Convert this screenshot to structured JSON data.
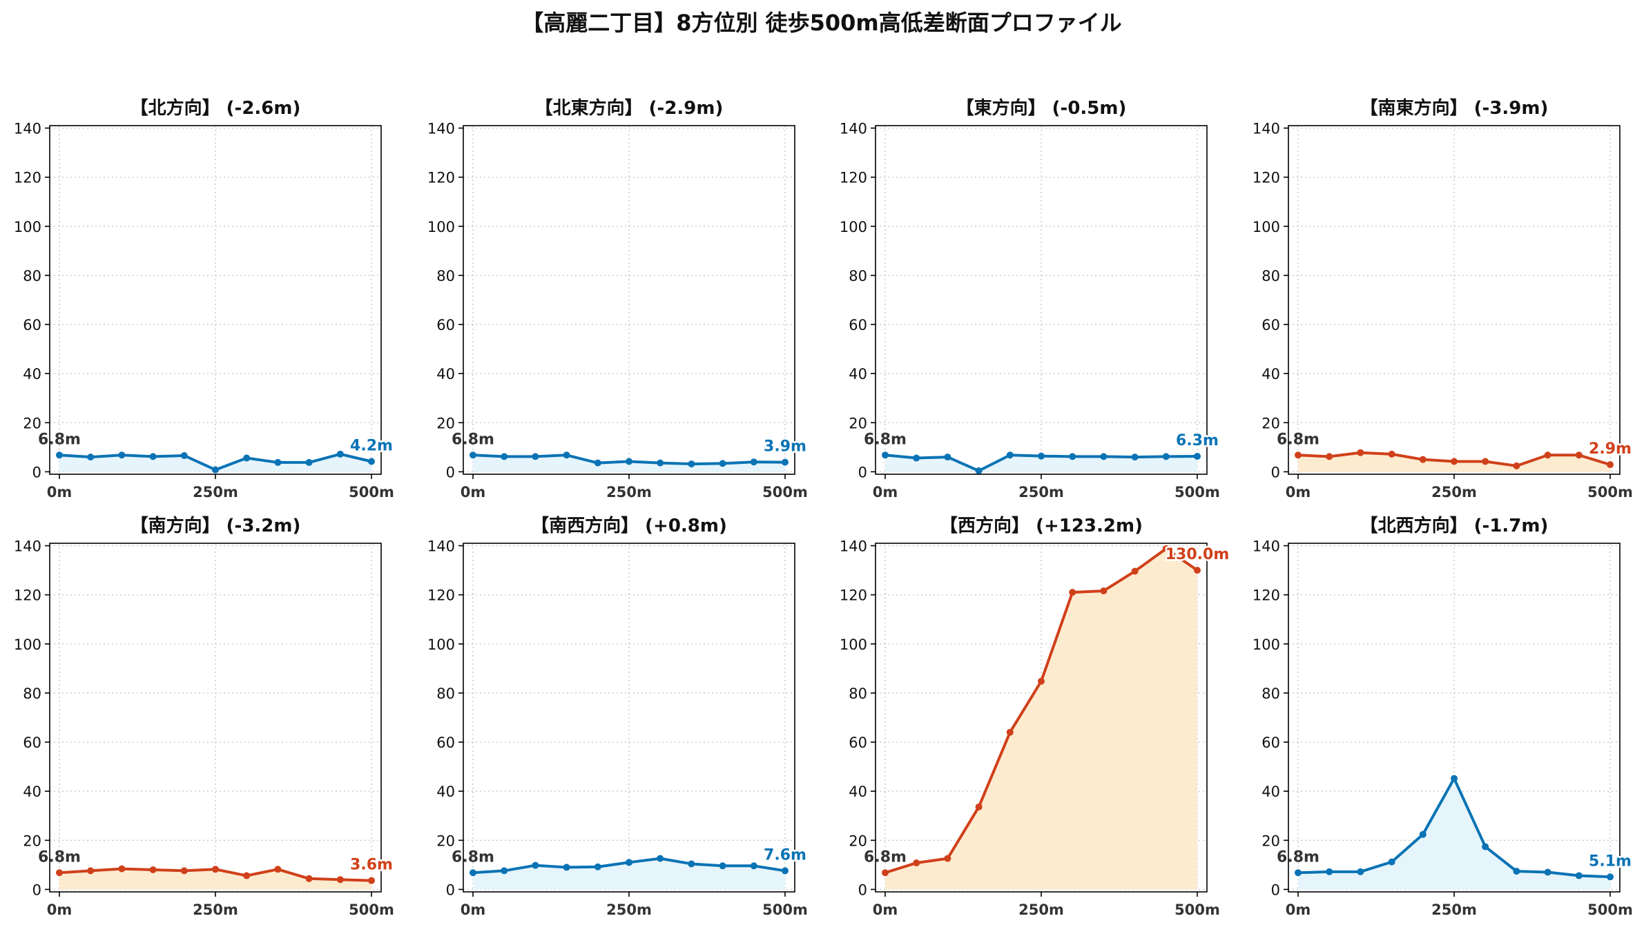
{
  "title": "【高麗二丁目】8方位別 徒歩500m高低差断面プロファイル",
  "colors": {
    "blue": "#0a73b5",
    "blue_fill": "#e6f4fb",
    "orange": "#d0401a",
    "orange_fill": "#fdebd0",
    "start_label": "#333333",
    "grid": "#c8c8c8",
    "axis": "#000000"
  },
  "chart_data": [
    {
      "type": "area",
      "title": "【北方向】 (-2.6m)",
      "x": [
        0,
        50,
        100,
        150,
        200,
        250,
        300,
        350,
        400,
        450,
        500
      ],
      "x_tick_values": [
        0,
        250,
        500
      ],
      "x_tick_labels": [
        "0m",
        "250m",
        "500m"
      ],
      "y": [
        6.8,
        6.0,
        6.8,
        6.2,
        6.6,
        0.8,
        5.6,
        3.8,
        3.8,
        7.2,
        4.2
      ],
      "ylim": [
        -1,
        141
      ],
      "y_ticks": [
        0,
        20,
        40,
        60,
        80,
        100,
        120,
        140
      ],
      "color": "blue",
      "start_label": "6.8m",
      "end_label": "4.2m",
      "grid": true
    },
    {
      "type": "area",
      "title": "【北東方向】 (-2.9m)",
      "x": [
        0,
        50,
        100,
        150,
        200,
        250,
        300,
        350,
        400,
        450,
        500
      ],
      "x_tick_values": [
        0,
        250,
        500
      ],
      "x_tick_labels": [
        "0m",
        "250m",
        "500m"
      ],
      "y": [
        6.8,
        6.2,
        6.2,
        6.8,
        3.6,
        4.2,
        3.6,
        3.2,
        3.4,
        4.0,
        3.9
      ],
      "ylim": [
        -1,
        141
      ],
      "y_ticks": [
        0,
        20,
        40,
        60,
        80,
        100,
        120,
        140
      ],
      "color": "blue",
      "start_label": "6.8m",
      "end_label": "3.9m",
      "grid": true
    },
    {
      "type": "area",
      "title": "【東方向】 (-0.5m)",
      "x": [
        0,
        50,
        100,
        150,
        200,
        250,
        300,
        350,
        400,
        450,
        500
      ],
      "x_tick_values": [
        0,
        250,
        500
      ],
      "x_tick_labels": [
        "0m",
        "250m",
        "500m"
      ],
      "y": [
        6.8,
        5.6,
        6.0,
        0.4,
        6.8,
        6.4,
        6.2,
        6.2,
        6.0,
        6.2,
        6.3
      ],
      "ylim": [
        -1,
        141
      ],
      "y_ticks": [
        0,
        20,
        40,
        60,
        80,
        100,
        120,
        140
      ],
      "color": "blue",
      "start_label": "6.8m",
      "end_label": "6.3m",
      "grid": true
    },
    {
      "type": "area",
      "title": "【南東方向】 (-3.9m)",
      "x": [
        0,
        50,
        100,
        150,
        200,
        250,
        300,
        350,
        400,
        450,
        500
      ],
      "x_tick_values": [
        0,
        250,
        500
      ],
      "x_tick_labels": [
        "0m",
        "250m",
        "500m"
      ],
      "y": [
        6.8,
        6.2,
        7.8,
        7.2,
        5.0,
        4.2,
        4.2,
        2.4,
        6.8,
        6.8,
        2.9
      ],
      "ylim": [
        -1,
        141
      ],
      "y_ticks": [
        0,
        20,
        40,
        60,
        80,
        100,
        120,
        140
      ],
      "color": "orange",
      "start_label": "6.8m",
      "end_label": "2.9m",
      "grid": true
    },
    {
      "type": "area",
      "title": "【南方向】 (-3.2m)",
      "x": [
        0,
        50,
        100,
        150,
        200,
        250,
        300,
        350,
        400,
        450,
        500
      ],
      "x_tick_values": [
        0,
        250,
        500
      ],
      "x_tick_labels": [
        "0m",
        "250m",
        "500m"
      ],
      "y": [
        6.8,
        7.6,
        8.4,
        8.0,
        7.6,
        8.2,
        5.6,
        8.2,
        4.4,
        4.0,
        3.6
      ],
      "ylim": [
        -1,
        141
      ],
      "y_ticks": [
        0,
        20,
        40,
        60,
        80,
        100,
        120,
        140
      ],
      "color": "orange",
      "start_label": "6.8m",
      "end_label": "3.6m",
      "grid": true
    },
    {
      "type": "area",
      "title": "【南西方向】 (+0.8m)",
      "x": [
        0,
        50,
        100,
        150,
        200,
        250,
        300,
        350,
        400,
        450,
        500
      ],
      "x_tick_values": [
        0,
        250,
        500
      ],
      "x_tick_labels": [
        "0m",
        "250m",
        "500m"
      ],
      "y": [
        6.8,
        7.6,
        9.8,
        9.0,
        9.2,
        11.0,
        12.6,
        10.4,
        9.6,
        9.6,
        7.6
      ],
      "ylim": [
        -1,
        141
      ],
      "y_ticks": [
        0,
        20,
        40,
        60,
        80,
        100,
        120,
        140
      ],
      "color": "blue",
      "start_label": "6.8m",
      "end_label": "7.6m",
      "grid": true
    },
    {
      "type": "area",
      "title": "【西方向】 (+123.2m)",
      "x": [
        0,
        50,
        100,
        150,
        200,
        250,
        300,
        350,
        400,
        450,
        500
      ],
      "x_tick_values": [
        0,
        250,
        500
      ],
      "x_tick_labels": [
        "0m",
        "250m",
        "500m"
      ],
      "y": [
        6.8,
        10.8,
        12.6,
        33.6,
        64.0,
        84.8,
        121.0,
        121.6,
        129.6,
        138.8,
        130.0
      ],
      "ylim": [
        -1,
        141
      ],
      "y_ticks": [
        0,
        20,
        40,
        60,
        80,
        100,
        120,
        140
      ],
      "color": "orange",
      "start_label": "6.8m",
      "end_label": "130.0m",
      "grid": true
    },
    {
      "type": "area",
      "title": "【北西方向】 (-1.7m)",
      "x": [
        0,
        50,
        100,
        150,
        200,
        250,
        300,
        350,
        400,
        450,
        500
      ],
      "x_tick_values": [
        0,
        250,
        500
      ],
      "x_tick_labels": [
        "0m",
        "250m",
        "500m"
      ],
      "y": [
        6.8,
        7.2,
        7.2,
        11.2,
        22.4,
        45.2,
        17.4,
        7.4,
        7.0,
        5.6,
        5.1
      ],
      "ylim": [
        -1,
        141
      ],
      "y_ticks": [
        0,
        20,
        40,
        60,
        80,
        100,
        120,
        140
      ],
      "color": "blue",
      "start_label": "6.8m",
      "end_label": "5.1m",
      "grid": true
    }
  ]
}
